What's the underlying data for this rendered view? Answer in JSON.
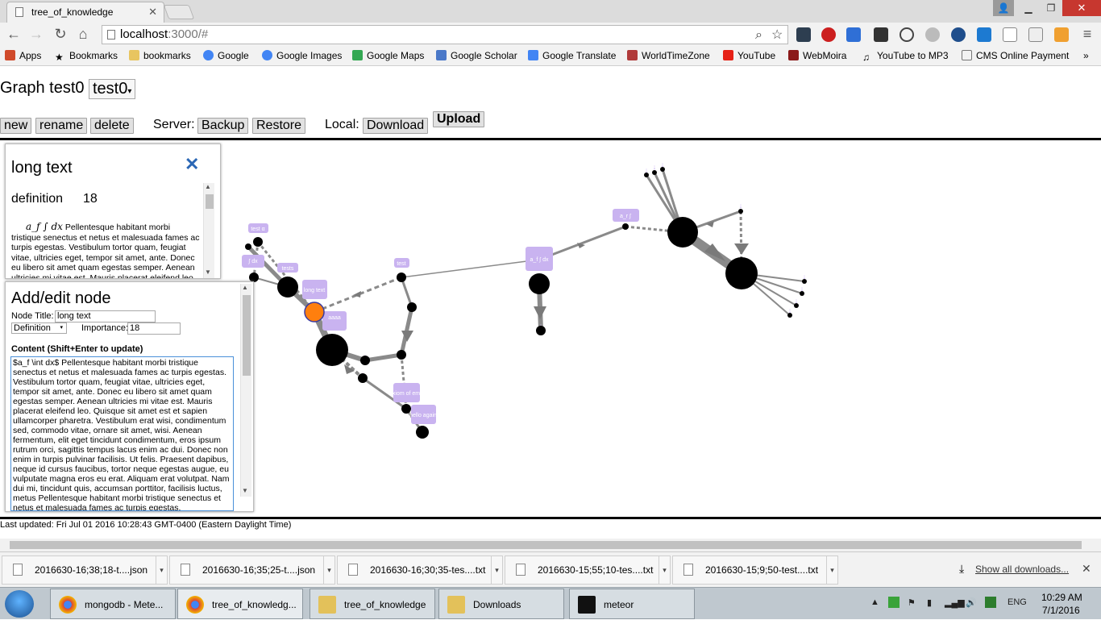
{
  "browser": {
    "tab_title": "tree_of_knowledge",
    "url_host": "localhost",
    "url_path": ":3000/#",
    "bookmarks": [
      "Apps",
      "Bookmarks",
      "bookmarks",
      "Google",
      "Google Images",
      "Google Maps",
      "Google Scholar",
      "Google Translate",
      "WorldTimeZone",
      "YouTube",
      "WebMoira",
      "YouTube to MP3",
      "CMS Online Payment"
    ]
  },
  "header": {
    "graph_label": "Graph test0",
    "graph_select": "test0"
  },
  "controls": {
    "new": "new",
    "rename": "rename",
    "delete": "delete",
    "server_label": "Server:",
    "backup": "Backup",
    "restore": "Restore",
    "local_label": "Local:",
    "download": "Download",
    "upload": "Upload"
  },
  "detail": {
    "title": "long text",
    "type": "definition",
    "importance": "18",
    "math": "a_f ∫ dx",
    "body": "Pellentesque habitant morbi tristique senectus et netus et malesuada fames ac turpis egestas. Vestibulum tortor quam, feugiat vitae, ultricies eget, tempor sit amet, ante. Donec eu libero sit amet quam egestas semper. Aenean ultricies mi vitae est. Mauris placerat eleifend leo."
  },
  "editor": {
    "title": "Add/edit node",
    "node_title_label": "Node Title:",
    "node_title_value": "long text",
    "type_value": "Definition",
    "importance_label": "Importance:",
    "importance_value": "18",
    "content_label": "Content (Shift+Enter to update)",
    "content_value": "$a_f \\int dx$ Pellentesque habitant morbi tristique senectus et netus et malesuada fames ac turpis egestas. Vestibulum tortor quam, feugiat vitae, ultricies eget, tempor sit amet, ante. Donec eu libero sit amet quam egestas semper. Aenean ultricies mi vitae est. Mauris placerat eleifend leo. Quisque sit amet est et sapien ullamcorper pharetra. Vestibulum erat wisi, condimentum sed, commodo vitae, ornare sit amet, wisi. Aenean fermentum, elit eget tincidunt condimentum, eros ipsum rutrum orci, sagittis tempus lacus enim ac dui. Donec non enim in turpis pulvinar facilisis. Ut felis. Praesent dapibus, neque id cursus faucibus, tortor neque egestas augue, eu vulputate magna eros eu erat. Aliquam erat volutpat. Nam dui mi, tincidunt quis, accumsan porttitor, facilisis luctus, metus Pellentesque habitant morbi tristique senectus et netus et malesuada fames ac turpis egestas."
  },
  "graph": {
    "labels": [
      "test α",
      "∫ dx",
      "tests",
      "long text",
      "aaaa",
      "test",
      "axiom of emo",
      "hello again",
      "a_f ∫ dx",
      "a_r ∫"
    ],
    "colors": {
      "node": "#000000",
      "selected": "#ff7f0e",
      "label_bg": "#c9b3f0",
      "edge": "#8a8a8a"
    }
  },
  "status": {
    "last_updated": "Last updated: Fri Jul 01 2016 10:28:43 GMT-0400 (Eastern Daylight Time)"
  },
  "downloads": {
    "items": [
      "2016630-16;38;18-t....json",
      "2016630-16;35;25-t....json",
      "2016630-16;30;35-tes....txt",
      "2016630-15;55;10-tes....txt",
      "2016630-15;9;50-test....txt"
    ],
    "show_all": "Show all downloads..."
  },
  "taskbar": {
    "items": [
      "mongodb - Mete...",
      "tree_of_knowledg...",
      "tree_of_knowledge",
      "Downloads",
      "meteor"
    ],
    "lang": "ENG",
    "time": "10:29 AM",
    "date": "7/1/2016"
  }
}
